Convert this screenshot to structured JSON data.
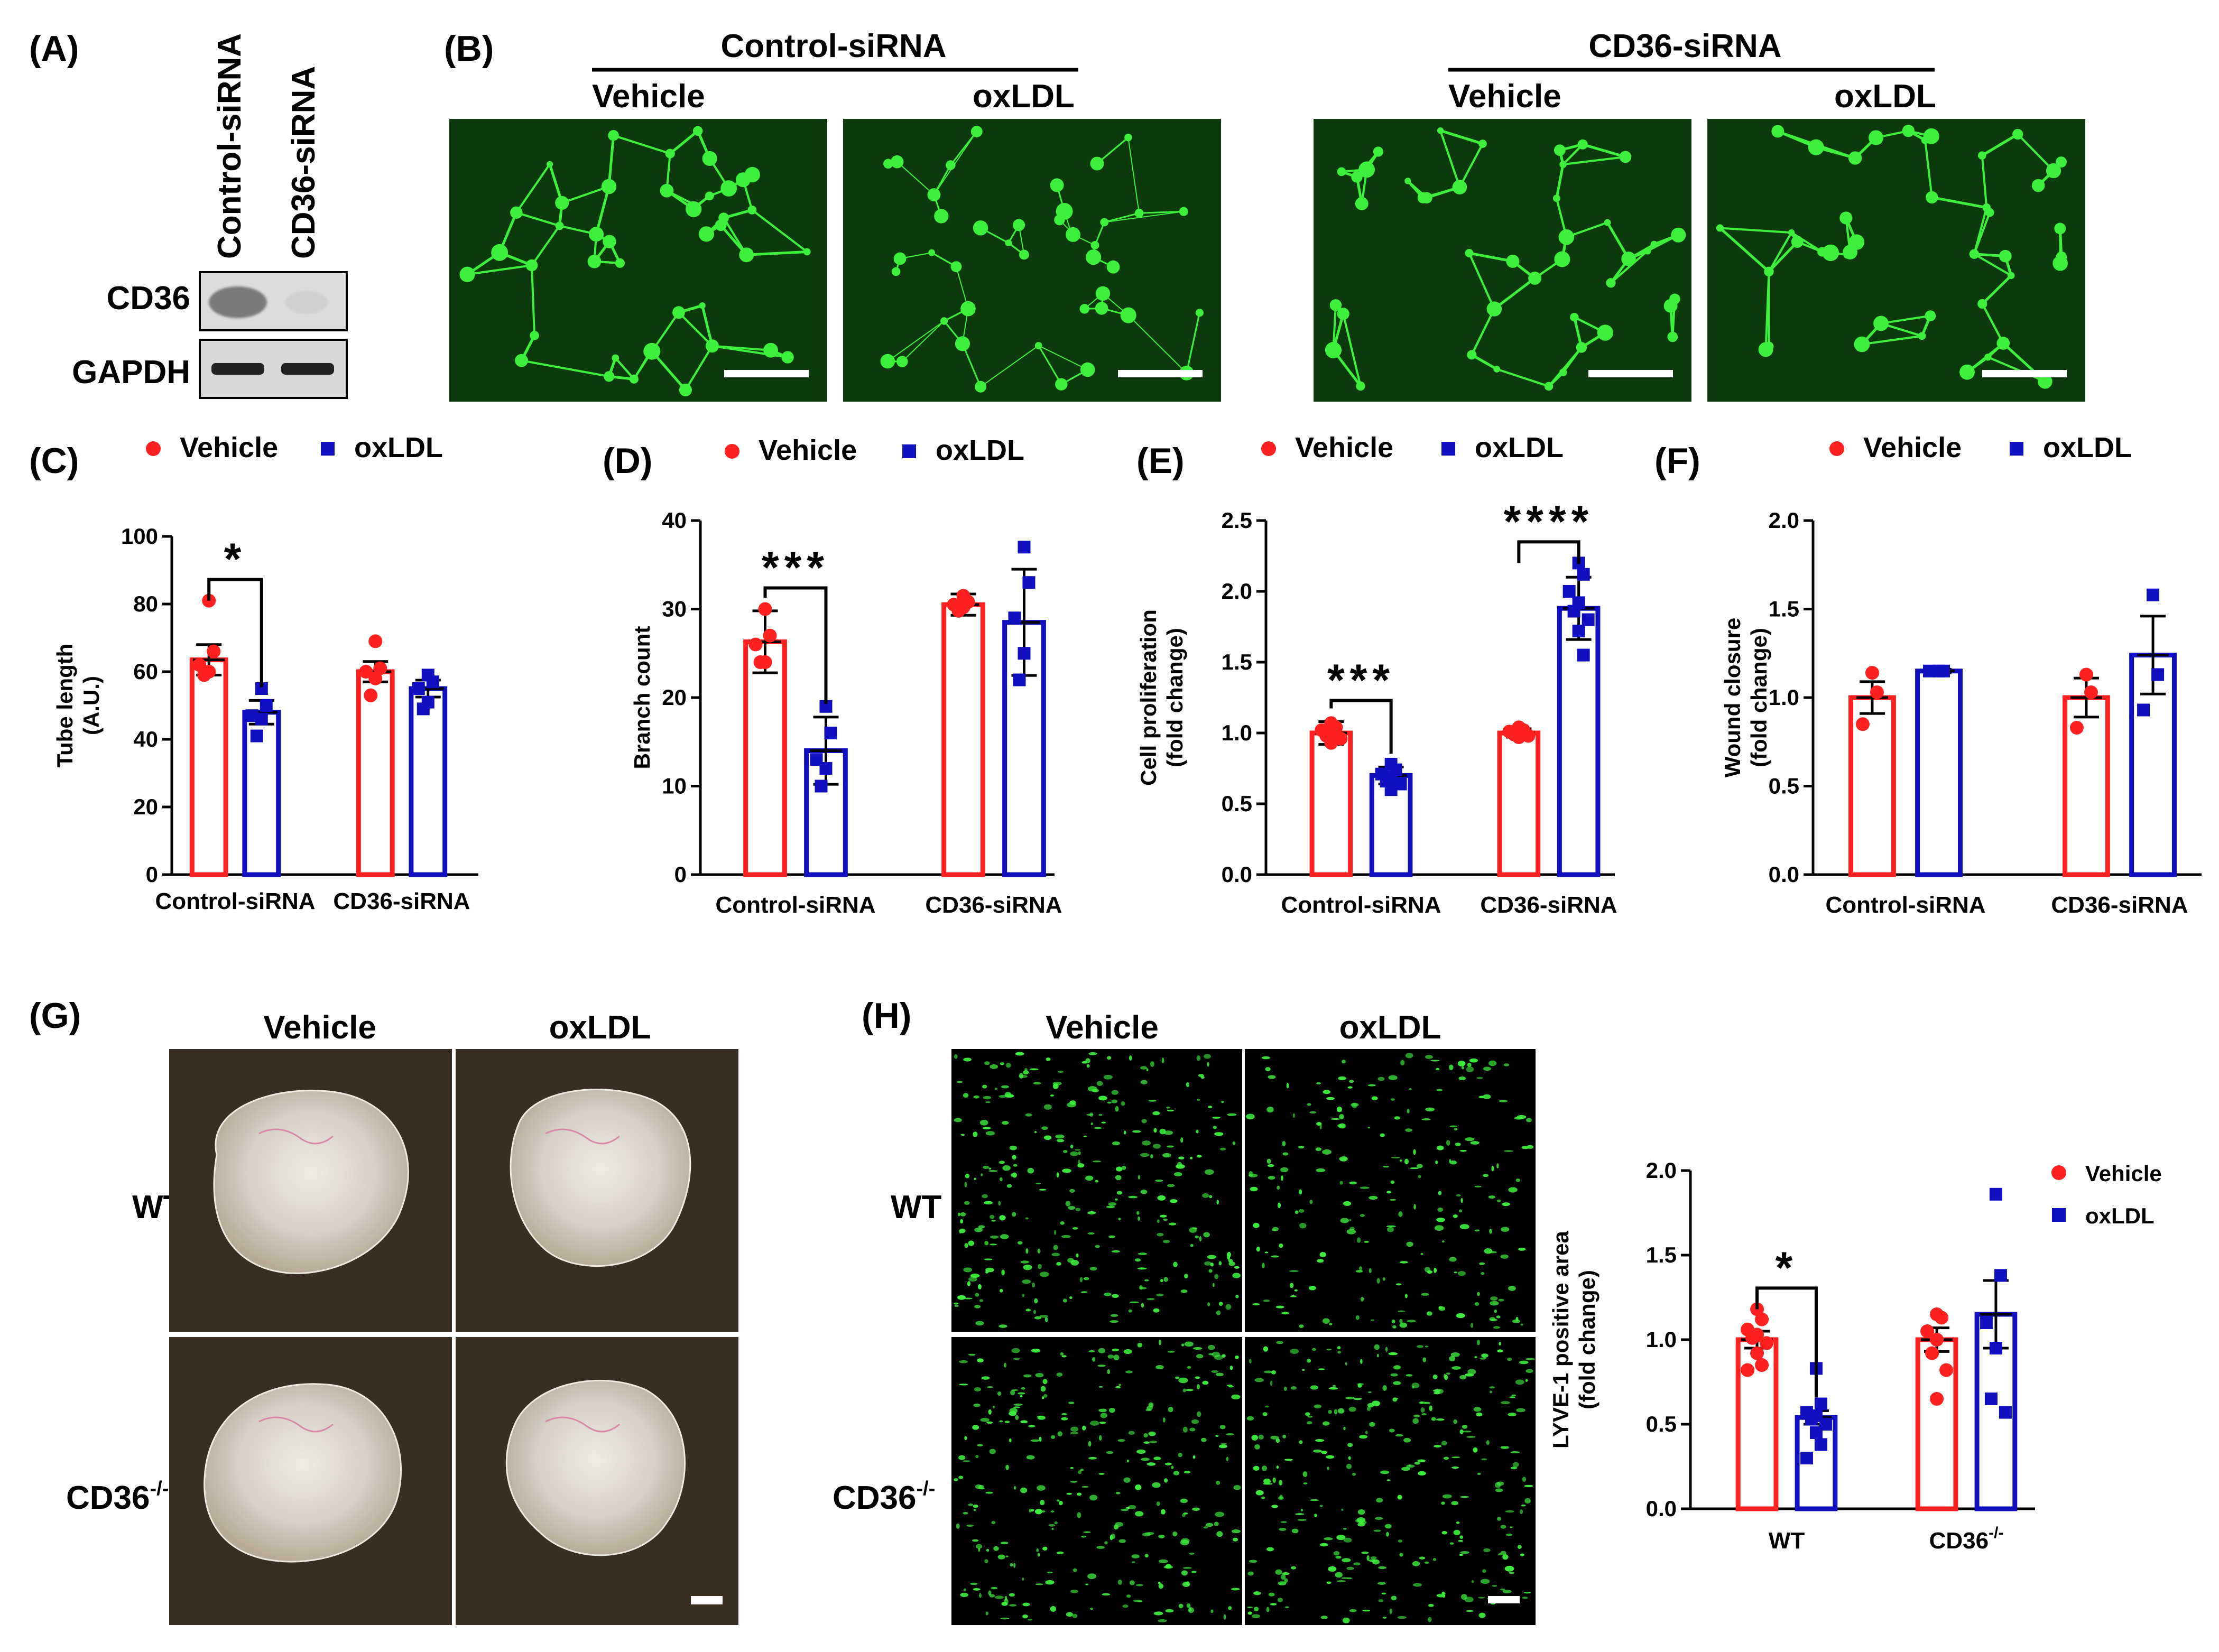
{
  "panels": {
    "A": {
      "label": "(A)",
      "lanes": [
        "Control-siRNA",
        "CD36-siRNA"
      ],
      "bands": [
        "CD36",
        "GAPDH"
      ]
    },
    "B": {
      "label": "(B)",
      "groups": [
        "Control-siRNA",
        "CD36-siRNA"
      ],
      "conditions": [
        "Vehicle",
        "oxLDL"
      ]
    },
    "G": {
      "label": "(G)",
      "conditions": [
        "Vehicle",
        "oxLDL"
      ],
      "rows": [
        "WT",
        "CD36"
      ],
      "sup": "-/-"
    },
    "H": {
      "label": "(H)",
      "conditions": [
        "Vehicle",
        "oxLDL"
      ],
      "rows": [
        "WT",
        "CD36"
      ],
      "sup": "-/-"
    }
  },
  "legend": {
    "vehicle": "Vehicle",
    "oxldl": "oxLDL"
  },
  "colors": {
    "vehicle": "#ff2020",
    "oxldl": "#1010c0",
    "micrograph_bg": "#0a2a0a",
    "micrograph_fg": "#3cf03c",
    "tissue_bg": "#3a2e22"
  },
  "chart_data": [
    {
      "id": "C",
      "label": "(C)",
      "type": "bar",
      "ylabel": [
        "Tube length",
        "(A.U.)"
      ],
      "ylim": [
        0,
        100
      ],
      "yticks": [
        "0",
        "20",
        "40",
        "60",
        "80",
        "100"
      ],
      "categories": [
        "Control-siRNA",
        "CD36-siRNA"
      ],
      "series": [
        {
          "name": "Vehicle",
          "marker": "circle",
          "values": [
            63.5,
            60
          ],
          "error": [
            4.5,
            3
          ],
          "points": [
            [
              81,
              66,
              62,
              60,
              59
            ],
            [
              69,
              61,
              60,
              58,
              53
            ]
          ]
        },
        {
          "name": "oxLDL",
          "marker": "square",
          "values": [
            48,
            55
          ],
          "error": [
            3.5,
            2.5
          ],
          "points": [
            [
              55,
              50,
              47,
              46,
              41
            ],
            [
              59,
              57,
              55,
              51,
              49
            ]
          ]
        }
      ],
      "significance": [
        {
          "category": 0,
          "label": "*"
        }
      ]
    },
    {
      "id": "D",
      "label": "(D)",
      "type": "bar",
      "ylabel": [
        "Branch count"
      ],
      "ylim": [
        0,
        40
      ],
      "yticks": [
        "0",
        "10",
        "20",
        "30",
        "40"
      ],
      "categories": [
        "Control-siRNA",
        "CD36-siRNA"
      ],
      "series": [
        {
          "name": "Vehicle",
          "marker": "circle",
          "values": [
            26.3,
            30.5
          ],
          "error": [
            3.5,
            1.2
          ],
          "points": [
            [
              30,
              27,
              26,
              24,
              24
            ],
            [
              31.5,
              30.8,
              30.5,
              30.2,
              29.8
            ]
          ]
        },
        {
          "name": "oxLDL",
          "marker": "square",
          "values": [
            14,
            28.5
          ],
          "error": [
            3.8,
            6
          ],
          "points": [
            [
              19,
              16,
              13,
              12,
              10
            ],
            [
              37,
              33,
              29,
              25,
              22
            ]
          ]
        }
      ],
      "significance": [
        {
          "category": 0,
          "label": "***"
        }
      ]
    },
    {
      "id": "E",
      "label": "(E)",
      "type": "bar",
      "ylabel": [
        "Cell proliferation",
        "(fold change)"
      ],
      "ylim": [
        0,
        2.5
      ],
      "yticks": [
        "0.0",
        "0.5",
        "1.0",
        "1.5",
        "2.0",
        "2.5"
      ],
      "categories": [
        "Control-siRNA",
        "CD36-siRNA"
      ],
      "series": [
        {
          "name": "Vehicle",
          "marker": "circle",
          "values": [
            1.0,
            1.0
          ],
          "error": [
            0.08,
            0.03
          ],
          "points": [
            [
              1.07,
              1.04,
              1.02,
              1.0,
              0.98,
              0.96,
              0.93
            ],
            [
              1.04,
              1.02,
              1.01,
              1.0,
              0.99,
              0.98,
              0.97
            ]
          ]
        },
        {
          "name": "oxLDL",
          "marker": "square",
          "values": [
            0.7,
            1.88
          ],
          "error": [
            0.06,
            0.22
          ],
          "points": [
            [
              0.78,
              0.74,
              0.71,
              0.69,
              0.66,
              0.64,
              0.6
            ],
            [
              2.2,
              2.12,
              2.0,
              1.92,
              1.86,
              1.8,
              1.72,
              1.55
            ]
          ]
        }
      ],
      "significance": [
        {
          "category": 0,
          "label": "***"
        },
        {
          "category": 1,
          "label": "****"
        }
      ]
    },
    {
      "id": "F",
      "label": "(F)",
      "type": "bar",
      "ylabel": [
        "Wound closure",
        "(fold change)"
      ],
      "ylim": [
        0,
        2.0
      ],
      "yticks": [
        "0.0",
        "0.5",
        "1.0",
        "1.5",
        "2.0"
      ],
      "categories": [
        "Control-siRNA",
        "CD36-siRNA"
      ],
      "series": [
        {
          "name": "Vehicle",
          "marker": "circle",
          "values": [
            1.0,
            1.0
          ],
          "error": [
            0.09,
            0.11
          ],
          "points": [
            [
              1.14,
              1.03,
              0.85
            ],
            [
              1.13,
              1.03,
              0.83
            ]
          ]
        },
        {
          "name": "oxLDL",
          "marker": "square",
          "values": [
            1.15,
            1.24
          ],
          "error": [
            0.01,
            0.22
          ],
          "points": [
            [
              1.15,
              1.15,
              1.15
            ],
            [
              1.58,
              1.13,
              0.93
            ]
          ]
        }
      ],
      "significance": []
    },
    {
      "id": "H2",
      "label": "",
      "type": "bar",
      "ylabel": [
        "LYVE-1 positive area",
        "(fold change)"
      ],
      "ylim": [
        0,
        2.0
      ],
      "yticks": [
        "0.0",
        "0.5",
        "1.0",
        "1.5",
        "2.0"
      ],
      "categories": [
        "WT",
        "CD36"
      ],
      "category_sup": [
        "",
        "-/-"
      ],
      "series": [
        {
          "name": "Vehicle",
          "marker": "circle",
          "values": [
            1.0,
            1.0
          ],
          "error": [
            0.05,
            0.07
          ],
          "points": [
            [
              1.18,
              1.12,
              1.06,
              1.03,
              1.01,
              0.98,
              0.92,
              0.85,
              0.82
            ],
            [
              1.15,
              1.13,
              1.05,
              1.0,
              0.92,
              0.82,
              0.65
            ]
          ]
        },
        {
          "name": "oxLDL",
          "marker": "square",
          "values": [
            0.54,
            1.15
          ],
          "error": [
            0.04,
            0.2
          ],
          "points": [
            [
              0.83,
              0.62,
              0.57,
              0.55,
              0.53,
              0.5,
              0.45,
              0.38,
              0.3
            ],
            [
              1.86,
              1.38,
              1.1,
              0.95,
              0.65,
              0.57
            ]
          ]
        }
      ],
      "significance": [
        {
          "category": 0,
          "label": "*"
        }
      ]
    }
  ]
}
